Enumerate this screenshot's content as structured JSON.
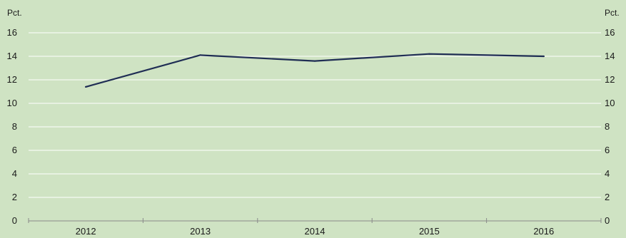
{
  "chart_data": {
    "type": "line",
    "title": "",
    "xlabel": "",
    "ylabel": "",
    "y_unit_left": "Pct.",
    "y_unit_right": "Pct.",
    "categories": [
      "2012",
      "2013",
      "2014",
      "2015",
      "2016"
    ],
    "series": [
      {
        "values": [
          11.4,
          14.1,
          13.6,
          14.2,
          14.0
        ]
      }
    ],
    "ylim": [
      0,
      16
    ],
    "yticks": [
      "0",
      "2",
      "4",
      "6",
      "8",
      "10",
      "12",
      "14",
      "16"
    ],
    "grid": true,
    "legend": "none",
    "colors": {
      "background": "#cfe3c3",
      "grid": "#ffffff",
      "axis": "#8a8a8a",
      "line": "#1f2d54"
    }
  }
}
